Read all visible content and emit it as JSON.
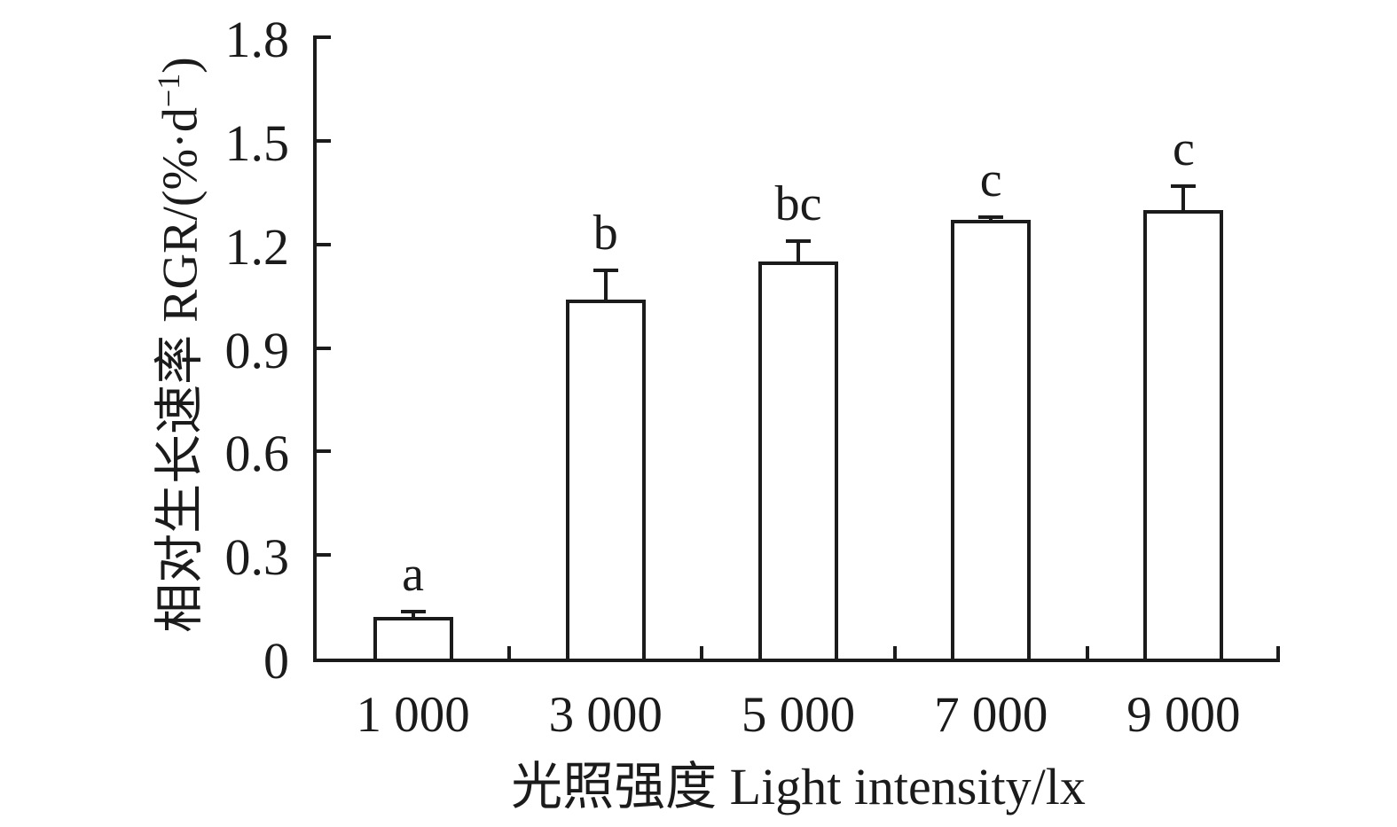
{
  "chart_data": {
    "type": "bar",
    "title": "",
    "xlabel": "光照强度 Light intensity/lx",
    "ylabel": "相对生长速率 RGR/(%·d−1)",
    "ylabel_parts": {
      "main": "相对生长速率 RGR/(%·d",
      "sup": "−1",
      "close": ")"
    },
    "categories": [
      "1 000",
      "3 000",
      "5 000",
      "7 000",
      "9 000"
    ],
    "values": [
      0.12,
      1.04,
      1.15,
      1.27,
      1.3
    ],
    "errors": [
      0.02,
      0.09,
      0.065,
      0.015,
      0.075
    ],
    "sig_letters": [
      "a",
      "b",
      "bc",
      "c",
      "c"
    ],
    "yticks": [
      0,
      0.3,
      0.6,
      0.9,
      1.2,
      1.5,
      1.8
    ],
    "ytick_labels": [
      "0",
      "0.3",
      "0.6",
      "0.9",
      "1.2",
      "1.5",
      "1.8"
    ],
    "ylim": [
      0,
      1.8
    ],
    "grid": false,
    "legend": null,
    "bar_fill": "#ffffff",
    "stroke_color": "#1b1b1b"
  }
}
